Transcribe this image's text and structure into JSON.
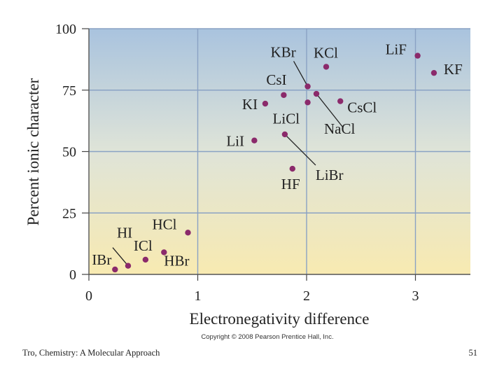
{
  "chart_data": {
    "type": "scatter",
    "title": "",
    "xlabel": "Electronegativity difference",
    "ylabel": "Percent ionic character",
    "xlim": [
      0,
      3.5
    ],
    "ylim": [
      0,
      100
    ],
    "xticks": [
      "0",
      "1",
      "2",
      "3"
    ],
    "yticks": [
      "0",
      "25",
      "50",
      "75",
      "100"
    ],
    "grid": true,
    "point_color": "#8b2a6b",
    "points": [
      {
        "label": "IBr",
        "x": 0.24,
        "y": 2
      },
      {
        "label": "HI",
        "x": 0.36,
        "y": 3.5
      },
      {
        "label": "ICl",
        "x": 0.52,
        "y": 6
      },
      {
        "label": "HBr",
        "x": 0.69,
        "y": 9
      },
      {
        "label": "HCl",
        "x": 0.91,
        "y": 17
      },
      {
        "label": "LiI",
        "x": 1.52,
        "y": 54.5
      },
      {
        "label": "KI",
        "x": 1.62,
        "y": 69.5
      },
      {
        "label": "CsI",
        "x": 1.79,
        "y": 73
      },
      {
        "label": "LiBr",
        "x": 1.8,
        "y": 57
      },
      {
        "label": "HF",
        "x": 1.87,
        "y": 43
      },
      {
        "label": "KBr",
        "x": 2.01,
        "y": 76.5
      },
      {
        "label": "LiCl",
        "x": 2.01,
        "y": 70
      },
      {
        "label": "NaCl",
        "x": 2.09,
        "y": 73.5
      },
      {
        "label": "KCl",
        "x": 2.18,
        "y": 84.5
      },
      {
        "label": "CsCl",
        "x": 2.31,
        "y": 70.5
      },
      {
        "label": "LiF",
        "x": 3.02,
        "y": 89
      },
      {
        "label": "KF",
        "x": 3.17,
        "y": 82
      }
    ]
  },
  "copyright": "Copyright © 2008 Pearson Prentice Hall, Inc.",
  "footer": {
    "left": "Tro, Chemistry: A Molecular Approach",
    "right": "51"
  }
}
